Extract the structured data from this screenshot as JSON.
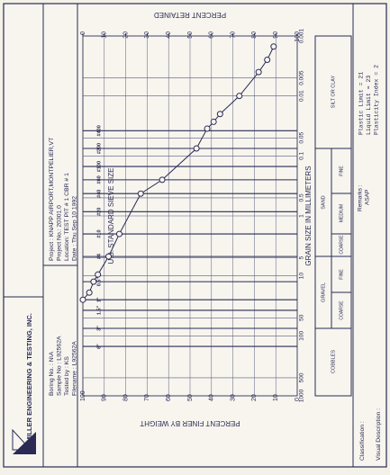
{
  "header": {
    "company": "MILLER ENGINEERING & TESTING, INC.",
    "boring_info": [
      "Boring No. : N\\A",
      "Sample No : L92562A",
      "Tested by : KS",
      "Filename : L92562A"
    ],
    "project_info": [
      "Project : KNAPP AIRPORT,MONTPELIER,VT",
      "Project No.: 20301.0",
      "Location: TEST PIT # 1 CBR # 1",
      "Date : Thu Sep 10 1992"
    ]
  },
  "chart_data": {
    "type": "line",
    "sieve_title": "U.S. STANDARD SIEVE SIZE",
    "xlabel": "GRAIN SIZE IN MILLIMETERS",
    "ylabel": "PERCENT FINER BY WEIGHT",
    "y2label": "PERCENT RETAINED",
    "xscale": "log",
    "xlim": [
      0.001,
      1000
    ],
    "xticks": [
      0.001,
      0.005,
      0.01,
      0.05,
      0.1,
      0.5,
      1,
      5,
      10,
      50,
      100,
      500,
      1000
    ],
    "sieve_ticks": [
      {
        "value": 0.038,
        "label": "#400"
      },
      {
        "value": 0.075,
        "label": "#200"
      },
      {
        "value": 0.15,
        "label": "#100"
      },
      {
        "value": 0.25,
        "label": "#60"
      },
      {
        "value": 0.425,
        "label": "#40"
      },
      {
        "value": 0.85,
        "label": "#20"
      },
      {
        "value": 2,
        "label": "#10"
      },
      {
        "value": 4.75,
        "label": "#4"
      },
      {
        "value": 12.5,
        "label": "0.5\""
      },
      {
        "value": 25,
        "label": "1\""
      },
      {
        "value": 37.5,
        "label": "1.5\""
      },
      {
        "value": 75,
        "label": "3\""
      },
      {
        "value": 150,
        "label": "6\""
      }
    ],
    "ylim": [
      0,
      100
    ],
    "yticks": [
      0,
      10,
      20,
      30,
      40,
      50,
      60,
      70,
      80,
      90,
      100
    ],
    "y2lim": [
      100,
      0
    ],
    "y2ticks": [
      0,
      10,
      20,
      30,
      40,
      50,
      60,
      70,
      80,
      90,
      100
    ],
    "grid": true,
    "x": [
      25,
      19,
      12.5,
      9.5,
      4.75,
      2,
      0.425,
      0.25,
      0.075,
      0.035,
      0.027,
      0.02,
      0.01,
      0.004,
      0.0025,
      0.0015
    ],
    "series": [
      {
        "color": "#2a2a55",
        "values": [
          100,
          97,
          95,
          93,
          88,
          83,
          73,
          63,
          47,
          42,
          39,
          36,
          27,
          18,
          14,
          11
        ]
      }
    ]
  },
  "classification_table": {
    "cobbles": "COBBLES",
    "gravel": "GRAVEL",
    "gravel_coarse": "COARSE",
    "gravel_fine": "FINE",
    "sand": "SAND",
    "sand_coarse": "COARSE",
    "sand_medium": "MEDIUM",
    "sand_fine": "FINE",
    "silt_clay": "SILT OR CLAY"
  },
  "footer": {
    "remarks_label": "Remarks :",
    "remarks": "ASAP",
    "limits": [
      "Plastic Limit = 21",
      "Liquid Limit = 23",
      "Plasticity Index = 2"
    ],
    "classification": "Classification :",
    "visual_description": "Visual Description :"
  }
}
